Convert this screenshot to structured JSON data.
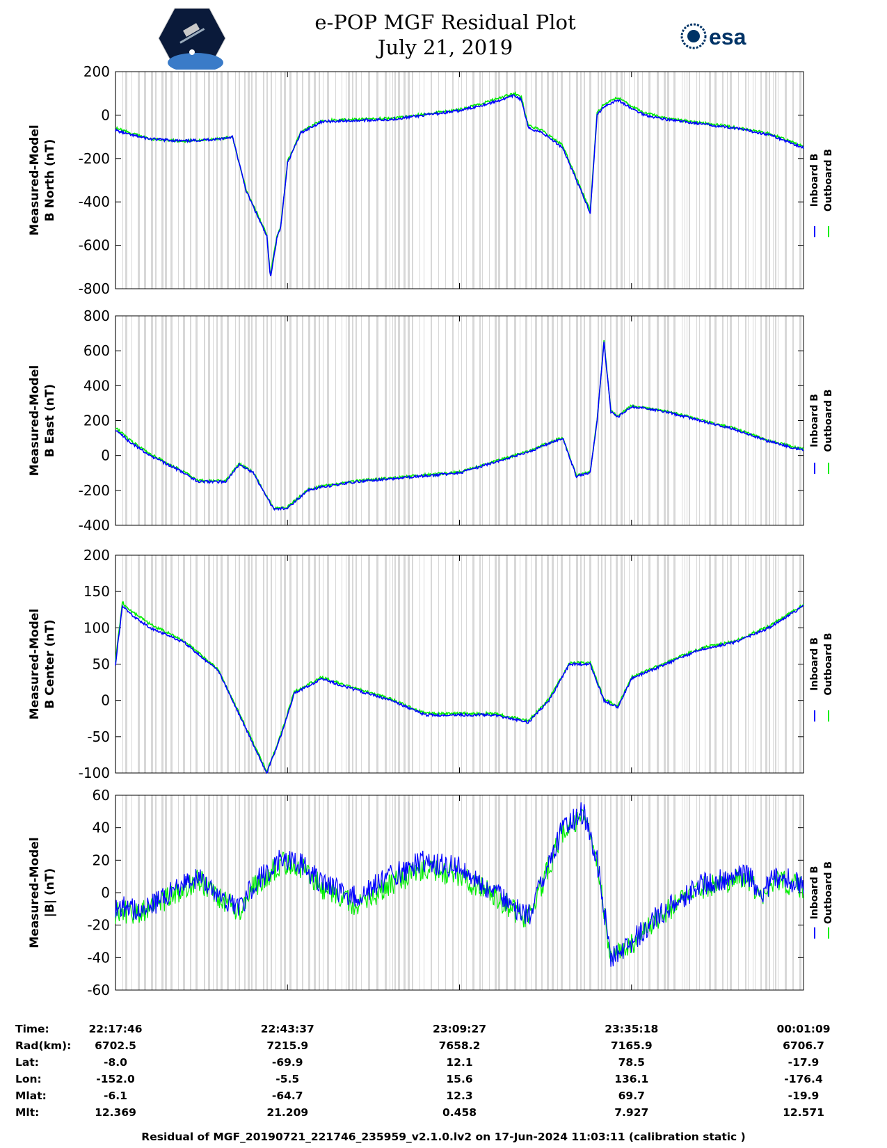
{
  "header": {
    "title": "e-POP MGF Residual Plot",
    "date": "July 21, 2019",
    "esa_logo_text": "esa"
  },
  "colors": {
    "inboard": "#0000ff",
    "outboard": "#00ee00",
    "gap": "#d8d8d8"
  },
  "chart_data": [
    {
      "type": "line",
      "ylabel": [
        "Measured-Model",
        "B North (nT)"
      ],
      "ylim": [
        -800,
        200
      ],
      "yticks": [
        200,
        0,
        -200,
        -400,
        -600,
        -800
      ],
      "legend": [
        "Inboard B",
        "Outboard B"
      ],
      "series": [
        {
          "name": "Inboard B",
          "x": [
            0,
            0.02,
            0.05,
            0.1,
            0.15,
            0.17,
            0.19,
            0.22,
            0.225,
            0.235,
            0.24,
            0.25,
            0.27,
            0.3,
            0.4,
            0.5,
            0.55,
            0.58,
            0.59,
            0.6,
            0.62,
            0.65,
            0.69,
            0.7,
            0.71,
            0.73,
            0.75,
            0.77,
            0.8,
            0.9,
            0.95,
            1
          ],
          "values": [
            -70,
            -90,
            -110,
            -120,
            -110,
            -100,
            -350,
            -560,
            -750,
            -560,
            -520,
            -220,
            -80,
            -30,
            -20,
            20,
            60,
            90,
            70,
            -60,
            -80,
            -150,
            -450,
            0,
            40,
            70,
            30,
            0,
            -20,
            -60,
            -90,
            -150
          ]
        },
        {
          "name": "Outboard B",
          "x": [
            0,
            0.02,
            0.05,
            0.1,
            0.15,
            0.17,
            0.19,
            0.22,
            0.225,
            0.235,
            0.24,
            0.25,
            0.27,
            0.3,
            0.4,
            0.5,
            0.55,
            0.58,
            0.59,
            0.6,
            0.62,
            0.65,
            0.69,
            0.7,
            0.71,
            0.73,
            0.75,
            0.77,
            0.8,
            0.9,
            0.95,
            1
          ],
          "values": [
            -60,
            -80,
            -110,
            -120,
            -110,
            -100,
            -345,
            -550,
            -740,
            -550,
            -515,
            -215,
            -75,
            -25,
            -15,
            25,
            70,
            100,
            80,
            -50,
            -70,
            -140,
            -440,
            10,
            50,
            80,
            40,
            10,
            -15,
            -55,
            -85,
            -145
          ]
        }
      ]
    },
    {
      "type": "line",
      "ylabel": [
        "Measured-Model",
        "B East (nT)"
      ],
      "ylim": [
        -400,
        800
      ],
      "yticks": [
        800,
        600,
        400,
        200,
        0,
        -200,
        -400
      ],
      "legend": [
        "Inboard B",
        "Outboard B"
      ],
      "series": [
        {
          "name": "Inboard B",
          "x": [
            0,
            0.02,
            0.05,
            0.1,
            0.12,
            0.16,
            0.18,
            0.2,
            0.23,
            0.25,
            0.28,
            0.3,
            0.35,
            0.5,
            0.6,
            0.65,
            0.67,
            0.69,
            0.7,
            0.71,
            0.72,
            0.73,
            0.74,
            0.75,
            0.8,
            0.85,
            0.9,
            0.95,
            1
          ],
          "values": [
            150,
            80,
            0,
            -100,
            -150,
            -150,
            -50,
            -100,
            -310,
            -300,
            -200,
            -180,
            -150,
            -100,
            20,
            100,
            -120,
            -100,
            200,
            650,
            250,
            220,
            250,
            280,
            250,
            200,
            150,
            80,
            30
          ]
        },
        {
          "name": "Outboard B",
          "x": [
            0,
            0.02,
            0.05,
            0.1,
            0.12,
            0.16,
            0.18,
            0.2,
            0.23,
            0.25,
            0.28,
            0.3,
            0.35,
            0.5,
            0.6,
            0.65,
            0.67,
            0.69,
            0.7,
            0.71,
            0.72,
            0.73,
            0.74,
            0.75,
            0.8,
            0.85,
            0.9,
            0.95,
            1
          ],
          "values": [
            160,
            90,
            10,
            -95,
            -145,
            -145,
            -45,
            -95,
            -305,
            -295,
            -195,
            -175,
            -145,
            -95,
            25,
            105,
            -115,
            -95,
            205,
            655,
            255,
            225,
            255,
            285,
            255,
            205,
            155,
            85,
            35
          ]
        }
      ]
    },
    {
      "type": "line",
      "ylabel": [
        "Measured-Model",
        "B Center (nT)"
      ],
      "ylim": [
        -100,
        200
      ],
      "yticks": [
        200,
        150,
        100,
        50,
        0,
        -50,
        -100
      ],
      "legend": [
        "Inboard B",
        "Outboard B"
      ],
      "series": [
        {
          "name": "Inboard B",
          "x": [
            0,
            0.01,
            0.02,
            0.05,
            0.1,
            0.15,
            0.18,
            0.2,
            0.22,
            0.24,
            0.26,
            0.3,
            0.33,
            0.4,
            0.45,
            0.5,
            0.55,
            0.6,
            0.63,
            0.66,
            0.69,
            0.71,
            0.73,
            0.75,
            0.8,
            0.85,
            0.9,
            0.95,
            1
          ],
          "values": [
            50,
            130,
            120,
            100,
            80,
            40,
            -20,
            -60,
            -100,
            -50,
            10,
            30,
            20,
            0,
            -20,
            -20,
            -20,
            -30,
            0,
            50,
            50,
            0,
            -10,
            30,
            50,
            70,
            80,
            100,
            130
          ]
        },
        {
          "name": "Outboard B",
          "x": [
            0,
            0.01,
            0.02,
            0.05,
            0.1,
            0.15,
            0.18,
            0.2,
            0.22,
            0.24,
            0.26,
            0.3,
            0.33,
            0.4,
            0.45,
            0.5,
            0.55,
            0.6,
            0.63,
            0.66,
            0.69,
            0.71,
            0.73,
            0.75,
            0.8,
            0.85,
            0.9,
            0.95,
            1
          ],
          "values": [
            55,
            135,
            125,
            105,
            82,
            42,
            -18,
            -58,
            -98,
            -48,
            12,
            32,
            22,
            2,
            -18,
            -18,
            -18,
            -28,
            2,
            52,
            52,
            2,
            -8,
            32,
            52,
            72,
            82,
            102,
            132
          ]
        }
      ]
    },
    {
      "type": "line",
      "ylabel": [
        "Measured-Model",
        "|B| (nT)"
      ],
      "ylim": [
        -60,
        60
      ],
      "yticks": [
        60,
        40,
        20,
        0,
        -20,
        -40,
        -60
      ],
      "legend": [
        "Inboard B",
        "Outboard B"
      ],
      "series": [
        {
          "name": "Inboard B",
          "x": [
            0,
            0.04,
            0.08,
            0.12,
            0.15,
            0.18,
            0.2,
            0.24,
            0.27,
            0.3,
            0.35,
            0.4,
            0.45,
            0.5,
            0.55,
            0.6,
            0.65,
            0.68,
            0.7,
            0.72,
            0.75,
            0.8,
            0.85,
            0.9,
            0.92,
            0.94,
            0.96,
            1
          ],
          "values": [
            -8,
            -12,
            0,
            10,
            0,
            -10,
            5,
            20,
            18,
            5,
            -3,
            10,
            20,
            15,
            0,
            -15,
            40,
            50,
            20,
            -40,
            -30,
            -10,
            5,
            10,
            10,
            0,
            10,
            5
          ]
        },
        {
          "name": "Outboard B",
          "x": [
            0,
            0.04,
            0.08,
            0.12,
            0.15,
            0.18,
            0.2,
            0.24,
            0.27,
            0.3,
            0.35,
            0.4,
            0.45,
            0.5,
            0.55,
            0.6,
            0.65,
            0.68,
            0.7,
            0.72,
            0.75,
            0.8,
            0.85,
            0.9,
            0.92,
            0.94,
            0.96,
            1
          ],
          "values": [
            -12,
            -12,
            -2,
            8,
            -2,
            -12,
            3,
            18,
            16,
            3,
            -8,
            5,
            15,
            10,
            -2,
            -17,
            38,
            48,
            18,
            -42,
            -32,
            -12,
            3,
            8,
            8,
            -4,
            8,
            3
          ]
        }
      ]
    }
  ],
  "axis_table": {
    "labels": [
      "Time:",
      "Rad(km):",
      "Lat:",
      "Lon:",
      "Mlat:",
      "Mlt:"
    ],
    "columns": [
      [
        "22:17:46",
        "6702.5",
        "-8.0",
        "-152.0",
        "-6.1",
        "12.369"
      ],
      [
        "22:43:37",
        "7215.9",
        "-69.9",
        "-5.5",
        "-64.7",
        "21.209"
      ],
      [
        "23:09:27",
        "7658.2",
        "12.1",
        "15.6",
        "12.3",
        "0.458"
      ],
      [
        "23:35:18",
        "7165.9",
        "78.5",
        "136.1",
        "69.7",
        "7.927"
      ],
      [
        "00:01:09",
        "6706.7",
        "-17.9",
        "-176.4",
        "-19.9",
        "12.571"
      ]
    ]
  },
  "footer": "Residual of MGF_20190721_221746_235959_v2.1.0.lv2 on 17-Jun-2024 11:03:11 (calibration static )"
}
